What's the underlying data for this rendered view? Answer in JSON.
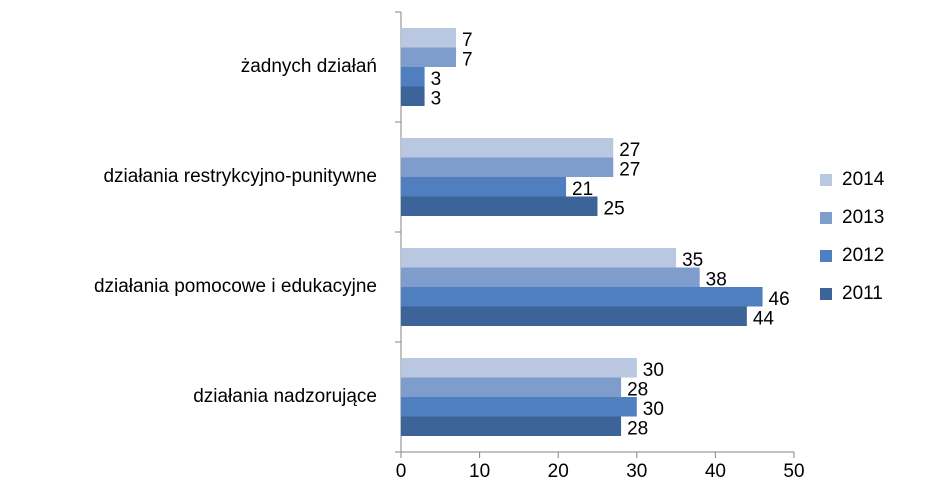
{
  "chart_data": {
    "type": "hbar",
    "categories": [
      "żadnych działań",
      "działania restrykcyjno-punitywne",
      "działania pomocowe i edukacyjne",
      "działania nadzorujące"
    ],
    "series": [
      {
        "name": "2014",
        "color": "#b9c7e1",
        "values": [
          7,
          27,
          35,
          30
        ]
      },
      {
        "name": "2013",
        "color": "#7f9dcc",
        "values": [
          7,
          27,
          38,
          28
        ]
      },
      {
        "name": "2012",
        "color": "#4f7fbe",
        "values": [
          3,
          21,
          46,
          30
        ]
      },
      {
        "name": "2011",
        "color": "#3c6498",
        "values": [
          3,
          25,
          44,
          28
        ]
      }
    ],
    "xlim": [
      0,
      50
    ],
    "xticks": [
      0,
      10,
      20,
      30,
      40,
      50
    ],
    "legend": "right",
    "grid": false
  }
}
